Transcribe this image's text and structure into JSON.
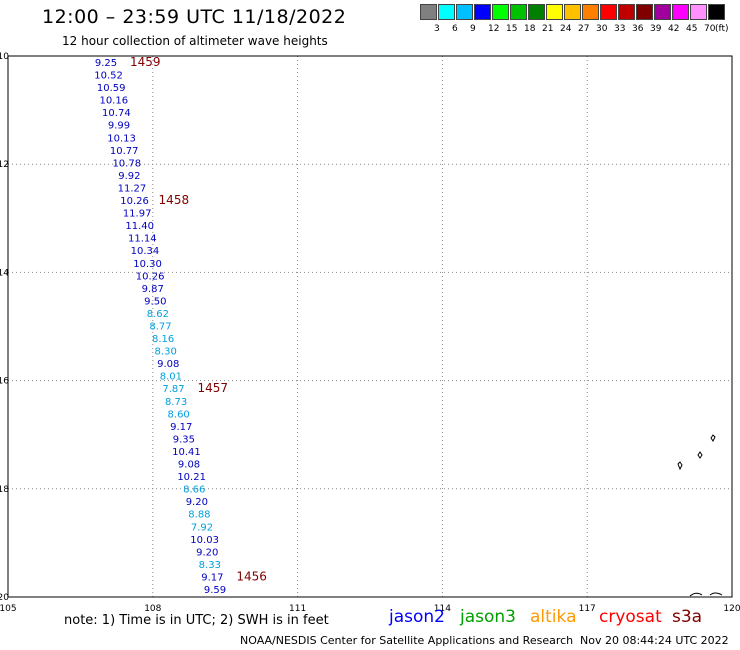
{
  "header": {
    "title": "12:00 – 23:59 UTC 11/18/2022",
    "subtitle": "12 hour collection of altimeter wave heights"
  },
  "color_scale": {
    "colors": [
      "#808080",
      "#00ffff",
      "#00c0ff",
      "#0000ff",
      "#00ff00",
      "#00c000",
      "#008000",
      "#ffff00",
      "#ffc000",
      "#ff8000",
      "#ff0000",
      "#c00000",
      "#800000",
      "#a000a0",
      "#ff00ff",
      "#ff90ff",
      "#000000"
    ],
    "labels": [
      "3",
      "6",
      "9",
      "12",
      "15",
      "18",
      "21",
      "24",
      "27",
      "30",
      "33",
      "36",
      "39",
      "42",
      "45",
      "70"
    ],
    "unit": "(ft)"
  },
  "map": {
    "lon_range": [
      105,
      120
    ],
    "lat_range": [
      -20,
      -10
    ],
    "x_ticks": [
      "105",
      "108",
      "111",
      "114",
      "117",
      "120"
    ],
    "y_ticks": [
      "-10",
      "-12",
      "-14",
      "-16",
      "-18",
      "-20"
    ],
    "grid": "dotted",
    "track_dark_color": "#0000c0",
    "track_light_color": "#00a0e0",
    "time_label_color": "#800000",
    "wave_heights": [
      {
        "v": "9.25",
        "light": false
      },
      {
        "v": "10.52",
        "light": false
      },
      {
        "v": "10.59",
        "light": false
      },
      {
        "v": "10.16",
        "light": false
      },
      {
        "v": "10.74",
        "light": false
      },
      {
        "v": "9.99",
        "light": false
      },
      {
        "v": "10.13",
        "light": false
      },
      {
        "v": "10.77",
        "light": false
      },
      {
        "v": "10.78",
        "light": false
      },
      {
        "v": "9.92",
        "light": false
      },
      {
        "v": "11.27",
        "light": false
      },
      {
        "v": "10.26",
        "light": false
      },
      {
        "v": "11.97",
        "light": false
      },
      {
        "v": "11.40",
        "light": false
      },
      {
        "v": "11.14",
        "light": false
      },
      {
        "v": "10.34",
        "light": false
      },
      {
        "v": "10.30",
        "light": false
      },
      {
        "v": "10.26",
        "light": false
      },
      {
        "v": "9.87",
        "light": false
      },
      {
        "v": "9.50",
        "light": false
      },
      {
        "v": "8.62",
        "light": true
      },
      {
        "v": "8.77",
        "light": true
      },
      {
        "v": "8.16",
        "light": true
      },
      {
        "v": "8.30",
        "light": true
      },
      {
        "v": "9.08",
        "light": false
      },
      {
        "v": "8.01",
        "light": true
      },
      {
        "v": "7.87",
        "light": true
      },
      {
        "v": "8.73",
        "light": true
      },
      {
        "v": "8.60",
        "light": true
      },
      {
        "v": "9.17",
        "light": false
      },
      {
        "v": "9.35",
        "light": false
      },
      {
        "v": "10.41",
        "light": false
      },
      {
        "v": "9.08",
        "light": false
      },
      {
        "v": "10.21",
        "light": false
      },
      {
        "v": "8.66",
        "light": true
      },
      {
        "v": "9.20",
        "light": false
      },
      {
        "v": "8.88",
        "light": true
      },
      {
        "v": "7.92",
        "light": true
      },
      {
        "v": "10.03",
        "light": false
      },
      {
        "v": "9.20",
        "light": false
      },
      {
        "v": "8.33",
        "light": true
      },
      {
        "v": "9.17",
        "light": false
      },
      {
        "v": "9.59",
        "light": false
      }
    ],
    "time_labels": [
      {
        "text": "1459",
        "at": 0
      },
      {
        "text": "1458",
        "at": 11
      },
      {
        "text": "1457",
        "at": 26
      },
      {
        "text": "1456",
        "at": 41
      }
    ]
  },
  "footer": {
    "note": "note: 1) Time is in UTC; 2) SWH is in feet",
    "satellites": [
      {
        "name": "jason2",
        "color": "#0000ff"
      },
      {
        "name": "jason3",
        "color": "#00a000"
      },
      {
        "name": "altika",
        "color": "#ff9900"
      },
      {
        "name": "cryosat",
        "color": "#ff0000"
      },
      {
        "name": "s3a",
        "color": "#800000"
      }
    ],
    "credit": "NOAA/NESDIS Center for Satellite Applications and Research",
    "timestamp": "Nov 20 08:44:24 UTC 2022"
  }
}
